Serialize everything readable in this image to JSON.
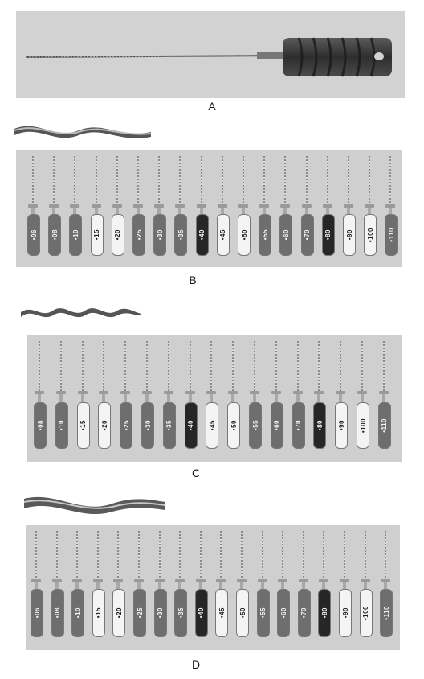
{
  "panels": {
    "A": {
      "label": "A"
    },
    "B": {
      "label": "B",
      "sizes": [
        "06",
        "08",
        "10",
        "15",
        "20",
        "25",
        "30",
        "35",
        "40",
        "45",
        "50",
        "55",
        "60",
        "70",
        "80",
        "90",
        "100",
        "110"
      ]
    },
    "C": {
      "label": "C",
      "sizes": [
        "08",
        "10",
        "15",
        "20",
        "25",
        "30",
        "35",
        "40",
        "45",
        "50",
        "55",
        "60",
        "70",
        "80",
        "90",
        "100",
        "110"
      ]
    },
    "D": {
      "label": "D",
      "sizes": [
        "06",
        "08",
        "10",
        "15",
        "20",
        "25",
        "30",
        "35",
        "40",
        "45",
        "50",
        "55",
        "60",
        "70",
        "80",
        "90",
        "100",
        "110"
      ]
    }
  },
  "colors": {
    "photo_bg": "#cfcfcf",
    "handle_light": "#f4f4f4",
    "handle_mid": "#6e6e6e",
    "handle_dark": "#262626",
    "text_on_light": "#222222",
    "text_on_dark": "#f4f4f4"
  }
}
